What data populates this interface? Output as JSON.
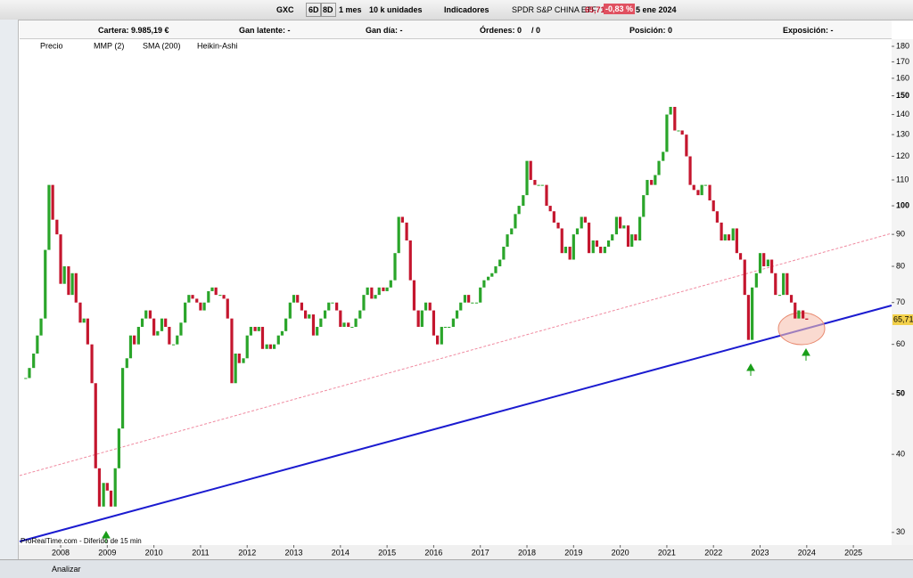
{
  "toolbar": {
    "symbol": "GXC",
    "buttons": [
      "6D",
      "8D"
    ],
    "period": "1 mes",
    "units": "10 k unidades",
    "indicators": "Indicadores",
    "name": "SPDR S&P CHINA ETF",
    "change": "-0,83 %",
    "date": "5 ene 2024"
  },
  "infobar": [
    "Cartera: 9.985,19 €",
    "Gan latente: -",
    "Gan día: -",
    "Órdenes: 0",
    "/ 0",
    "Posición: 0",
    "Exposición: -"
  ],
  "legend": [
    "Precio",
    "MMP (2)",
    "SMA (200)",
    "Heikin-Ashi"
  ],
  "footer": {
    "source": "ProRealTime.com - Diferido de 15 min",
    "analyze": "Analizar"
  },
  "chart_data": {
    "type": "candlestick",
    "log": true,
    "up_color": "#2aa52a",
    "down_color": "#c4162e",
    "last_price": {
      "value": 65.71,
      "label": "65,71"
    },
    "xlim": [
      2007.12,
      2025.82
    ],
    "xticks": [
      2008,
      2009,
      2010,
      2011,
      2012,
      2013,
      2014,
      2015,
      2016,
      2017,
      2018,
      2019,
      2020,
      2021,
      2022,
      2023,
      2024,
      2025
    ],
    "ylim": [
      29.3,
      184.2
    ],
    "yticks": [
      30,
      40,
      50,
      60,
      70,
      80,
      90,
      100,
      110,
      120,
      130,
      140,
      150,
      160,
      170,
      180
    ],
    "x": [
      2007.25,
      2007.33,
      2007.42,
      2007.5,
      2007.58,
      2007.67,
      2007.75,
      2007.83,
      2007.92,
      2008,
      2008.08,
      2008.17,
      2008.25,
      2008.33,
      2008.42,
      2008.5,
      2008.58,
      2008.67,
      2008.75,
      2008.83,
      2008.92,
      2009,
      2009.08,
      2009.17,
      2009.25,
      2009.33,
      2009.42,
      2009.5,
      2009.58,
      2009.67,
      2009.75,
      2009.83,
      2009.92,
      2010,
      2010.08,
      2010.17,
      2010.25,
      2010.33,
      2010.42,
      2010.5,
      2010.58,
      2010.67,
      2010.75,
      2010.83,
      2010.92,
      2011,
      2011.08,
      2011.17,
      2011.25,
      2011.33,
      2011.42,
      2011.5,
      2011.58,
      2011.67,
      2011.75,
      2011.83,
      2011.92,
      2012,
      2012.08,
      2012.17,
      2012.25,
      2012.33,
      2012.42,
      2012.5,
      2012.58,
      2012.67,
      2012.75,
      2012.83,
      2012.92,
      2013,
      2013.08,
      2013.17,
      2013.25,
      2013.33,
      2013.42,
      2013.5,
      2013.58,
      2013.67,
      2013.75,
      2013.83,
      2013.92,
      2014,
      2014.08,
      2014.17,
      2014.25,
      2014.33,
      2014.42,
      2014.5,
      2014.58,
      2014.67,
      2014.75,
      2014.83,
      2014.92,
      2015,
      2015.08,
      2015.17,
      2015.25,
      2015.33,
      2015.42,
      2015.5,
      2015.58,
      2015.67,
      2015.75,
      2015.83,
      2015.92,
      2016,
      2016.08,
      2016.17,
      2016.25,
      2016.33,
      2016.42,
      2016.5,
      2016.58,
      2016.67,
      2016.75,
      2016.83,
      2016.92,
      2017,
      2017.08,
      2017.17,
      2017.25,
      2017.33,
      2017.42,
      2017.5,
      2017.58,
      2017.67,
      2017.75,
      2017.83,
      2017.92,
      2018,
      2018.08,
      2018.17,
      2018.25,
      2018.33,
      2018.42,
      2018.5,
      2018.58,
      2018.67,
      2018.75,
      2018.83,
      2018.92,
      2019,
      2019.08,
      2019.17,
      2019.25,
      2019.33,
      2019.42,
      2019.5,
      2019.58,
      2019.67,
      2019.75,
      2019.83,
      2019.92,
      2020,
      2020.08,
      2020.17,
      2020.25,
      2020.33,
      2020.42,
      2020.5,
      2020.58,
      2020.67,
      2020.75,
      2020.83,
      2020.92,
      2021,
      2021.08,
      2021.17,
      2021.25,
      2021.33,
      2021.42,
      2021.5,
      2021.58,
      2021.67,
      2021.75,
      2021.83,
      2021.92,
      2022,
      2022.08,
      2022.17,
      2022.25,
      2022.33,
      2022.42,
      2022.5,
      2022.58,
      2022.67,
      2022.75,
      2022.83,
      2022.92,
      2023,
      2023.08,
      2023.17,
      2023.25,
      2023.33,
      2023.42,
      2023.5,
      2023.58,
      2023.67,
      2023.75,
      2023.83,
      2023.92,
      2024
    ],
    "values": [
      53,
      55,
      58,
      62,
      66,
      85,
      108,
      95,
      90,
      75,
      80,
      72,
      78,
      70,
      65,
      66,
      60,
      52,
      38,
      33,
      36,
      35,
      33,
      38,
      44,
      55,
      57,
      62,
      60,
      64,
      66,
      68,
      66,
      62,
      63,
      66,
      64,
      60,
      60,
      62,
      65,
      70,
      72,
      71,
      70,
      68,
      70,
      73,
      74,
      72,
      72,
      71,
      66,
      52,
      58,
      56,
      57,
      62,
      64,
      63,
      64,
      59,
      60,
      59,
      60,
      62,
      63,
      66,
      70,
      72,
      70,
      68,
      66,
      67,
      62,
      64,
      66,
      68,
      70,
      70,
      68,
      64,
      65,
      64,
      64,
      66,
      68,
      72,
      74,
      71,
      72,
      74,
      73,
      74,
      76,
      84,
      96,
      94,
      88,
      76,
      68,
      64,
      68,
      70,
      68,
      62,
      60,
      64,
      64,
      64,
      66,
      68,
      70,
      72,
      70,
      70,
      70,
      74,
      76,
      77,
      78,
      80,
      82,
      86,
      90,
      92,
      97,
      100,
      104,
      118,
      110,
      108,
      108,
      108,
      100,
      98,
      94,
      92,
      84,
      86,
      82,
      90,
      92,
      96,
      94,
      84,
      88,
      86,
      84,
      86,
      88,
      90,
      96,
      92,
      93,
      86,
      90,
      88,
      96,
      104,
      110,
      108,
      112,
      118,
      122,
      140,
      144,
      132,
      132,
      130,
      120,
      108,
      106,
      104,
      108,
      108,
      102,
      98,
      94,
      88,
      90,
      88,
      92,
      84,
      82,
      72,
      61,
      74,
      78,
      84,
      80,
      82,
      78,
      72,
      72,
      78,
      72,
      70,
      66,
      68,
      66,
      65.71
    ]
  }
}
